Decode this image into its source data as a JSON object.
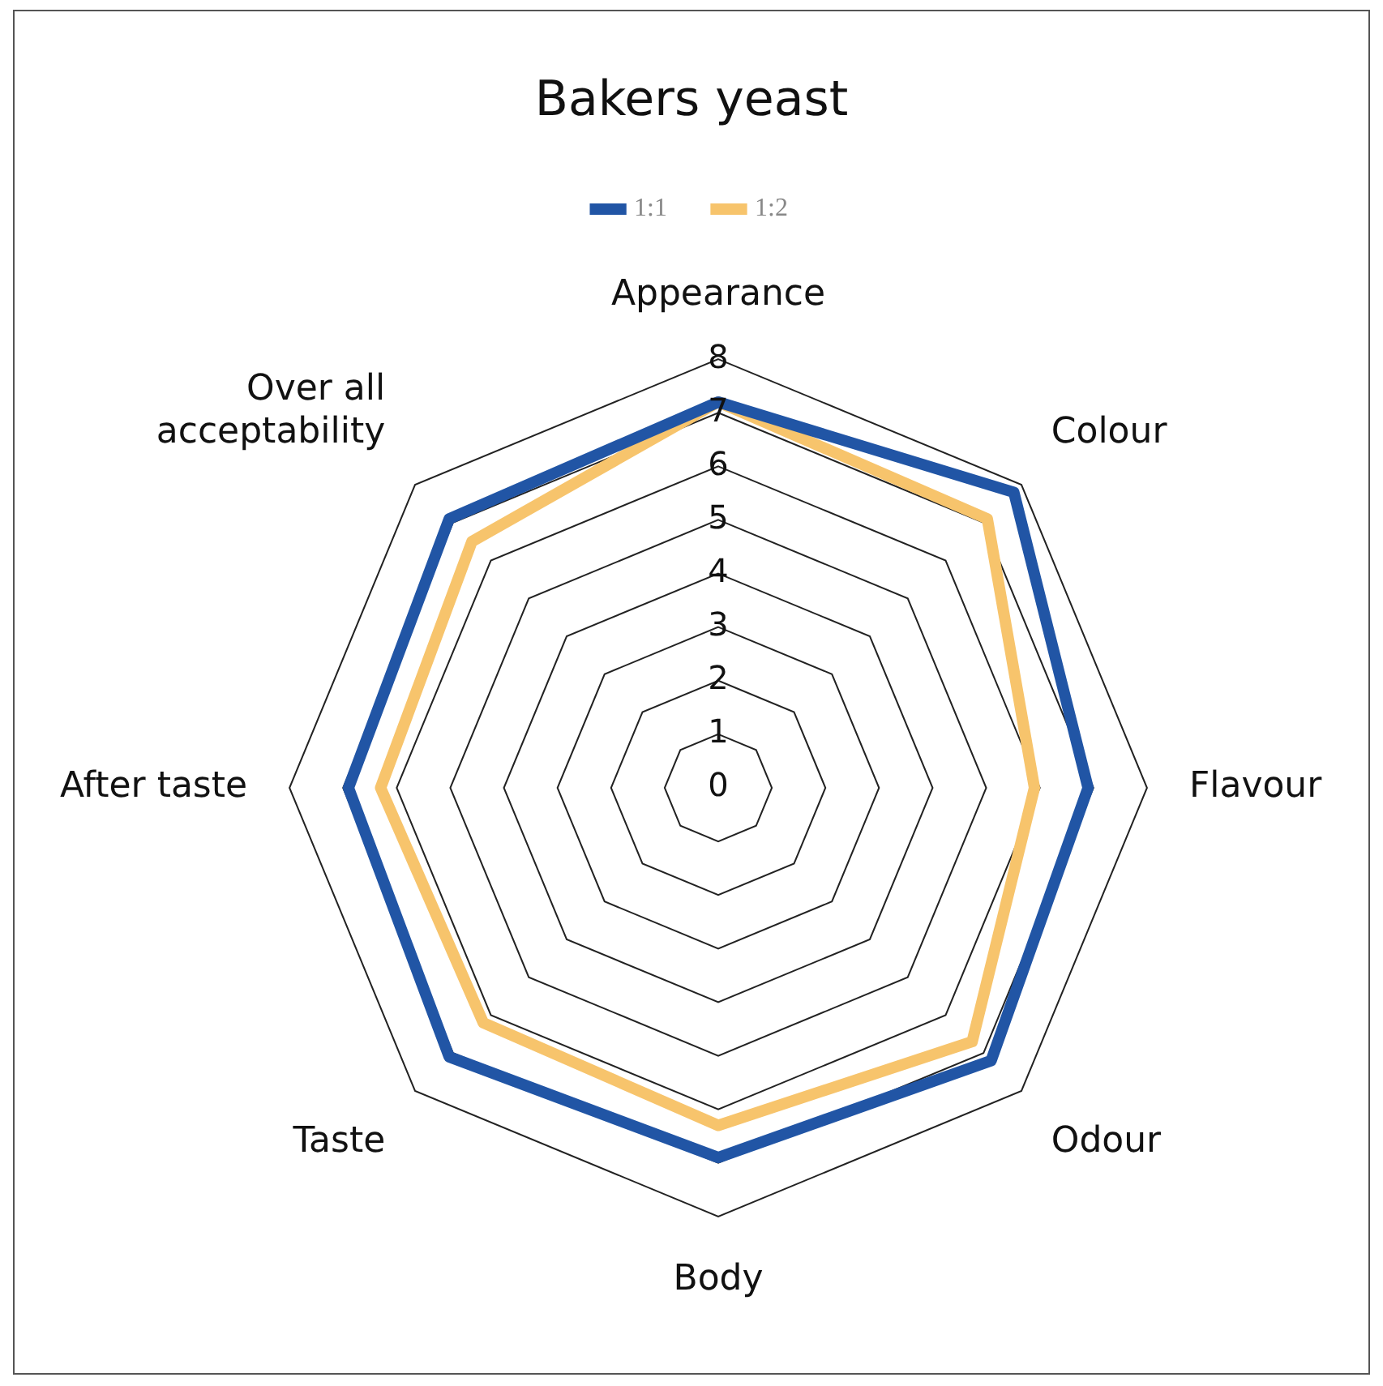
{
  "chart_data": {
    "type": "radar",
    "title": "Bakers yeast",
    "categories": [
      "Appearance",
      "Colour",
      "Flavour",
      "Odour",
      "Body",
      "Taste",
      "After taste",
      "Over all acceptability"
    ],
    "series": [
      {
        "name": "1:1",
        "color": "#2155a5",
        "values": [
          7.2,
          7.8,
          6.9,
          7.2,
          6.9,
          7.1,
          6.9,
          7.1
        ]
      },
      {
        "name": "1:2",
        "color": "#f7c46c",
        "values": [
          7.2,
          7.1,
          5.9,
          6.7,
          6.3,
          6.2,
          6.3,
          6.5
        ]
      }
    ],
    "ylim": [
      0,
      8
    ],
    "yticks": [
      0,
      1,
      2,
      3,
      4,
      5,
      6,
      7,
      8
    ],
    "grid": true,
    "legend": "top",
    "marker": "none"
  }
}
